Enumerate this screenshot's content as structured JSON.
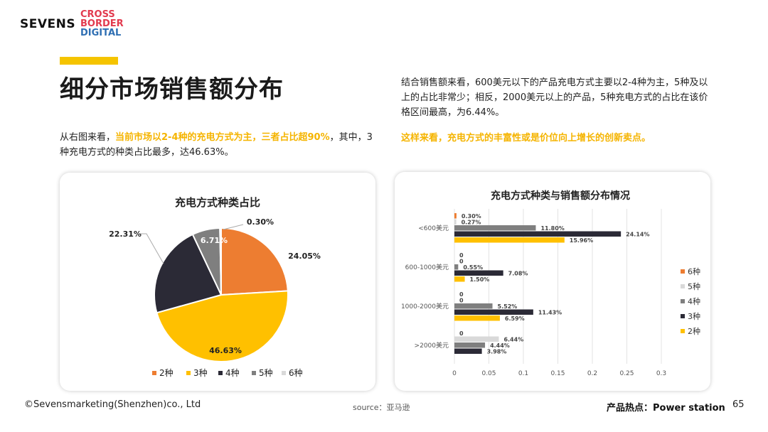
{
  "logo": {
    "brand": "SEVENS",
    "tag_line1": "CROSS",
    "tag_line2": "BORDER",
    "tag_line3": "DIGITAL",
    "tag_colors": [
      "#e23a4e",
      "#2f6fb3"
    ]
  },
  "page": {
    "title": "细分市场销售额分布",
    "left_text_a": "从右图来看，",
    "left_text_hl": "当前市场以2-4种的充电方式为主，三者占比超90%",
    "left_text_b": "，其中，3种充电方式的种类占比最多，达46.63%。",
    "right_text": "结合销售额来看，600美元以下的产品充电方式主要以2-4种为主，5种及以上的占比非常少；相反，2000美元以上的产品，5种充电方式的占比在该价格区间最高，为6.44%。",
    "right_highlight": "这样来看，充电方式的丰富性或是价位向上增长的创新卖点。",
    "accent_color": "#f5c400"
  },
  "footer": {
    "copyright": "©Sevensmarketing(Shenzhen)co., Ltd",
    "source": "source：亚马逊",
    "hot_product": "产品热点：Power station",
    "page_number": "65"
  },
  "chart_data": [
    {
      "type": "pie",
      "title": "充电方式种类占比",
      "categories": [
        "2种",
        "3种",
        "4种",
        "5种",
        "6种"
      ],
      "values": [
        24.05,
        46.63,
        22.31,
        6.71,
        0.3
      ],
      "labels": [
        "24.05%",
        "46.63%",
        "22.31%",
        "6.71%",
        "0.30%"
      ],
      "colors": [
        "#ed7d31",
        "#ffc000",
        "#2b2a36",
        "#7f7f7f",
        "#d9d9d9"
      ],
      "legend": "bottom"
    },
    {
      "type": "bar",
      "orientation": "horizontal",
      "title": "充电方式种类与销售额分布情况",
      "categories": [
        "<600美元",
        "600-1000美元",
        "1000-2000美元",
        ">2000美元"
      ],
      "series": [
        {
          "name": "6种",
          "color": "#ed7d31",
          "values": [
            0.003,
            0,
            0,
            0
          ],
          "labels": [
            "0.30%",
            "0",
            "0",
            "0"
          ]
        },
        {
          "name": "5种",
          "color": "#d9d9d9",
          "values": [
            0.0027,
            0,
            0,
            0.0644
          ],
          "labels": [
            "0.27%",
            "0",
            "0",
            "6.44%"
          ]
        },
        {
          "name": "4种",
          "color": "#7f7f7f",
          "values": [
            0.118,
            0.0055,
            0.0552,
            0.0444
          ],
          "labels": [
            "11.80%",
            "0.55%",
            "5.52%",
            "4.44%"
          ]
        },
        {
          "name": "3种",
          "color": "#2b2a36",
          "values": [
            0.2414,
            0.0708,
            0.1143,
            0.0398
          ],
          "labels": [
            "24.14%",
            "7.08%",
            "11.43%",
            "3.98%"
          ]
        },
        {
          "name": "2种",
          "color": "#ffc000",
          "values": [
            0.1596,
            0.015,
            0.0659,
            0
          ],
          "labels": [
            "15.96%",
            "1.50%",
            "6.59%",
            ""
          ]
        }
      ],
      "xlim": [
        0,
        0.3
      ],
      "xticks": [
        "0",
        "0.05",
        "0.1",
        "0.15",
        "0.2",
        "0.25",
        "0.3"
      ],
      "legend": "right",
      "grid": true
    }
  ]
}
